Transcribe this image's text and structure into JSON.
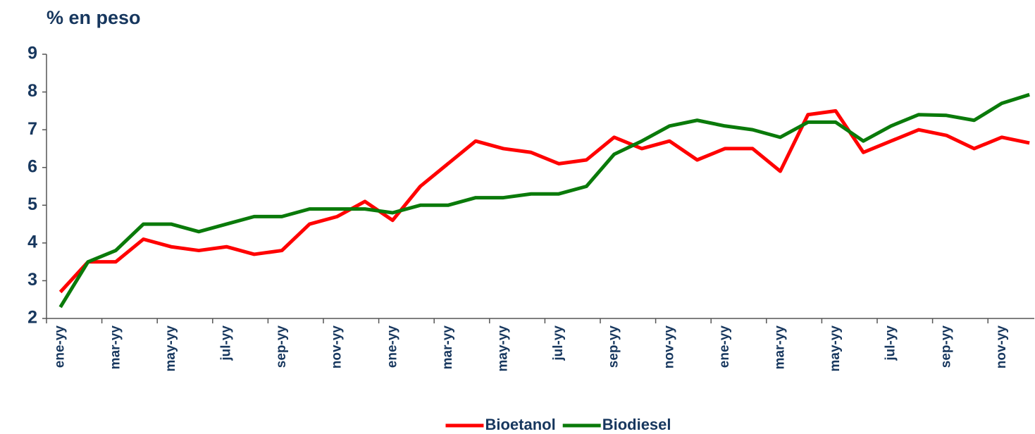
{
  "chart_data": {
    "type": "line",
    "title": "% en peso",
    "categories": [
      "ene-yy",
      null,
      "mar-yy",
      null,
      "may-yy",
      null,
      "jul-yy",
      null,
      "sep-yy",
      null,
      "nov-yy",
      null,
      "ene-yy",
      null,
      "mar-yy",
      null,
      "may-yy",
      null,
      "jul-yy",
      null,
      "sep-yy",
      null,
      "nov-yy",
      null,
      "ene-yy",
      null,
      "mar-yy",
      null,
      "may-yy",
      null,
      "jul-yy",
      null,
      "sep-yy",
      null,
      "nov-yy",
      null
    ],
    "series": [
      {
        "name": "Bioetanol",
        "color": "#ff0000",
        "values": [
          2.7,
          3.5,
          3.5,
          4.1,
          3.9,
          3.8,
          3.9,
          3.7,
          3.8,
          4.5,
          4.7,
          5.1,
          4.6,
          5.5,
          6.1,
          6.7,
          6.5,
          6.4,
          6.1,
          6.2,
          6.8,
          6.5,
          6.7,
          6.2,
          6.5,
          6.5,
          5.9,
          7.4,
          7.5,
          6.4,
          6.7,
          7.0,
          6.85,
          6.5,
          6.8,
          6.65
        ]
      },
      {
        "name": "Biodiesel",
        "color": "#0a7a0a",
        "values": [
          2.3,
          3.5,
          3.8,
          4.5,
          4.5,
          4.3,
          4.5,
          4.7,
          4.7,
          4.9,
          4.9,
          4.9,
          4.8,
          5.0,
          5.0,
          5.2,
          5.2,
          5.3,
          5.3,
          5.5,
          6.35,
          6.7,
          7.1,
          7.25,
          7.1,
          7.0,
          6.8,
          7.2,
          7.2,
          6.7,
          7.1,
          7.4,
          7.38,
          7.25,
          7.7,
          7.93
        ]
      }
    ],
    "ylim": [
      2,
      9
    ],
    "yticks": [
      2,
      3,
      4,
      5,
      6,
      7,
      8,
      9
    ],
    "grid": false,
    "legend": "bottom"
  }
}
